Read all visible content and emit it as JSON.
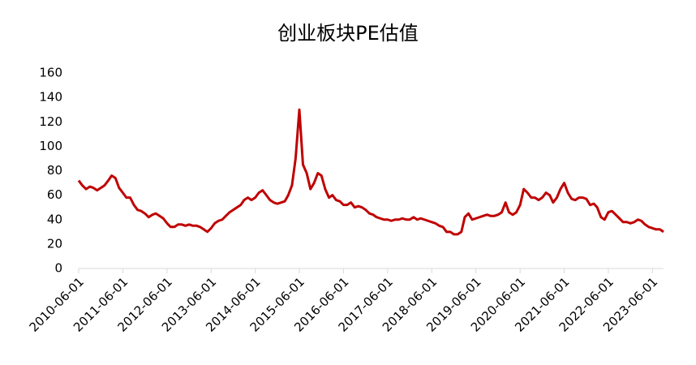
{
  "chart_data": {
    "type": "line",
    "title": "创业板块PE估值",
    "x": [
      "2010-06-01",
      "2010-07-01",
      "2010-08-01",
      "2010-09-01",
      "2010-10-01",
      "2010-11-01",
      "2010-12-01",
      "2011-01-01",
      "2011-02-01",
      "2011-03-01",
      "2011-04-01",
      "2011-05-01",
      "2011-06-01",
      "2011-07-01",
      "2011-08-01",
      "2011-09-01",
      "2011-10-01",
      "2011-11-01",
      "2011-12-01",
      "2012-01-01",
      "2012-02-01",
      "2012-03-01",
      "2012-04-01",
      "2012-05-01",
      "2012-06-01",
      "2012-07-01",
      "2012-08-01",
      "2012-09-01",
      "2012-10-01",
      "2012-11-01",
      "2012-12-01",
      "2013-01-01",
      "2013-02-01",
      "2013-03-01",
      "2013-04-01",
      "2013-05-01",
      "2013-06-01",
      "2013-07-01",
      "2013-08-01",
      "2013-09-01",
      "2013-10-01",
      "2013-11-01",
      "2013-12-01",
      "2014-01-01",
      "2014-02-01",
      "2014-03-01",
      "2014-04-01",
      "2014-05-01",
      "2014-06-01",
      "2014-07-01",
      "2014-08-01",
      "2014-09-01",
      "2014-10-01",
      "2014-11-01",
      "2014-12-01",
      "2015-01-01",
      "2015-02-01",
      "2015-03-01",
      "2015-04-01",
      "2015-05-01",
      "2015-06-01",
      "2015-07-01",
      "2015-08-01",
      "2015-09-01",
      "2015-10-01",
      "2015-11-01",
      "2015-12-01",
      "2016-01-01",
      "2016-02-01",
      "2016-03-01",
      "2016-04-01",
      "2016-05-01",
      "2016-06-01",
      "2016-07-01",
      "2016-08-01",
      "2016-09-01",
      "2016-10-01",
      "2016-11-01",
      "2016-12-01",
      "2017-01-01",
      "2017-02-01",
      "2017-03-01",
      "2017-04-01",
      "2017-05-01",
      "2017-06-01",
      "2017-07-01",
      "2017-08-01",
      "2017-09-01",
      "2017-10-01",
      "2017-11-01",
      "2017-12-01",
      "2018-01-01",
      "2018-02-01",
      "2018-03-01",
      "2018-04-01",
      "2018-05-01",
      "2018-06-01",
      "2018-07-01",
      "2018-08-01",
      "2018-09-01",
      "2018-10-01",
      "2018-11-01",
      "2018-12-01",
      "2019-01-01",
      "2019-02-01",
      "2019-03-01",
      "2019-04-01",
      "2019-05-01",
      "2019-06-01",
      "2019-07-01",
      "2019-08-01",
      "2019-09-01",
      "2019-10-01",
      "2019-11-01",
      "2019-12-01",
      "2020-01-01",
      "2020-02-01",
      "2020-03-01",
      "2020-04-01",
      "2020-05-01",
      "2020-06-01",
      "2020-07-01",
      "2020-08-01",
      "2020-09-01",
      "2020-10-01",
      "2020-11-01",
      "2020-12-01",
      "2021-01-01",
      "2021-02-01",
      "2021-03-01",
      "2021-04-01",
      "2021-05-01",
      "2021-06-01",
      "2021-07-01",
      "2021-08-01",
      "2021-09-01",
      "2021-10-01",
      "2021-11-01",
      "2021-12-01",
      "2022-01-01",
      "2022-02-01",
      "2022-03-01",
      "2022-04-01",
      "2022-05-01",
      "2022-06-01",
      "2022-07-01",
      "2022-08-01",
      "2022-09-01",
      "2022-10-01",
      "2022-11-01",
      "2022-12-01",
      "2023-01-01",
      "2023-02-01",
      "2023-03-01",
      "2023-04-01",
      "2023-05-01",
      "2023-06-01",
      "2023-07-01",
      "2023-08-01",
      "2023-09-01"
    ],
    "series": [
      {
        "name": "创业板块PE",
        "color": "#c00000",
        "values": [
          72,
          68,
          65,
          67,
          66,
          64,
          66,
          68,
          72,
          76,
          74,
          66,
          62,
          58,
          58,
          52,
          48,
          47,
          45,
          42,
          44,
          45,
          43,
          41,
          37,
          34,
          34,
          36,
          36,
          35,
          36,
          35,
          35,
          34,
          32,
          30,
          33,
          37,
          39,
          40,
          43,
          46,
          48,
          50,
          52,
          56,
          58,
          56,
          58,
          62,
          64,
          60,
          56,
          54,
          53,
          54,
          55,
          60,
          68,
          90,
          130,
          85,
          78,
          65,
          70,
          78,
          76,
          65,
          58,
          60,
          56,
          55,
          52,
          52,
          54,
          50,
          51,
          50,
          48,
          45,
          44,
          42,
          41,
          40,
          40,
          39,
          40,
          40,
          41,
          40,
          40,
          42,
          40,
          41,
          40,
          39,
          38,
          37,
          35,
          34,
          30,
          30,
          28,
          28,
          30,
          42,
          45,
          40,
          41,
          42,
          43,
          44,
          43,
          43,
          44,
          46,
          54,
          46,
          44,
          46,
          52,
          65,
          62,
          58,
          58,
          56,
          58,
          62,
          60,
          54,
          58,
          65,
          70,
          62,
          57,
          56,
          58,
          58,
          57,
          52,
          53,
          50,
          42,
          40,
          46,
          47,
          44,
          41,
          38,
          38,
          37,
          38,
          40,
          39,
          36,
          34,
          33,
          32,
          32,
          30
        ]
      }
    ],
    "xlim": [
      "2010-06-01",
      "2023-09-01"
    ],
    "xticks": [
      "2010-06-01",
      "2011-06-01",
      "2012-06-01",
      "2013-06-01",
      "2014-06-01",
      "2015-06-01",
      "2016-06-01",
      "2017-06-01",
      "2018-06-01",
      "2019-06-01",
      "2020-06-01",
      "2021-06-01",
      "2022-06-01",
      "2023-06-01"
    ],
    "ylim": [
      0,
      160
    ],
    "yticks": [
      0,
      20,
      40,
      60,
      80,
      100,
      120,
      140,
      160
    ],
    "grid": false
  }
}
